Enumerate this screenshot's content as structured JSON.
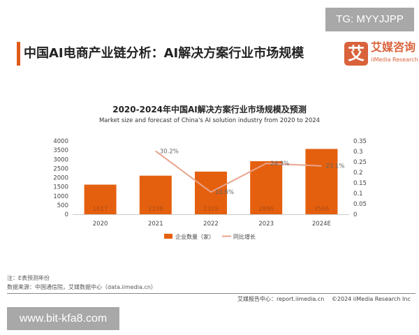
{
  "watermark_top": "TG: MYYJJPP",
  "watermark_bottom": "www.bit-kfa8.com",
  "header": {
    "title": "中国AI电商产业链分析：AI解决方案行业市场规模",
    "logo_mark": "艾",
    "logo_cn": "艾媒咨询",
    "logo_en": "iiMedia Research"
  },
  "chart_data": {
    "type": "bar+line",
    "title": "2020-2024年中国AI解决方案行业市场规模及预测",
    "subtitle": "Market size and forecast of China's AI solution industry from 2020 to 2024",
    "categories": [
      "2020",
      "2021",
      "2022",
      "2023",
      "2024E"
    ],
    "series": [
      {
        "name": "企业数量（家）",
        "type": "bar",
        "axis": "left",
        "values": [
          1617,
          2106,
          2329,
          2896,
          3566
        ],
        "color": "#e4600f"
      },
      {
        "name": "同比增长",
        "type": "line",
        "axis": "right",
        "values": [
          null,
          0.302,
          0.106,
          0.243,
          0.231
        ],
        "labels": [
          "",
          "30.2%",
          "10.6%",
          "24.3%",
          "23.1%"
        ],
        "color": "#e8a48c"
      }
    ],
    "left_axis": {
      "ylim": [
        0,
        4000
      ],
      "ticks": [
        "0",
        "500",
        "1000",
        "1500",
        "2000",
        "2500",
        "3000",
        "3500",
        "4000"
      ]
    },
    "right_axis": {
      "ylim": [
        0,
        0.35
      ],
      "ticks": [
        "0",
        "0.05",
        "0.1",
        "0.15",
        "0.2",
        "0.25",
        "0.3",
        "0.35"
      ]
    },
    "legend": "bottom",
    "grid": false
  },
  "notes": {
    "note": "注：E表预测年份",
    "source": "数据来源：中国通信院，艾媒数据中心（data.iimedia.cn）"
  },
  "footer": {
    "text": "艾媒报告中心：report.iimedia.cn　 ©2024  iiMedia Research  Inc"
  }
}
